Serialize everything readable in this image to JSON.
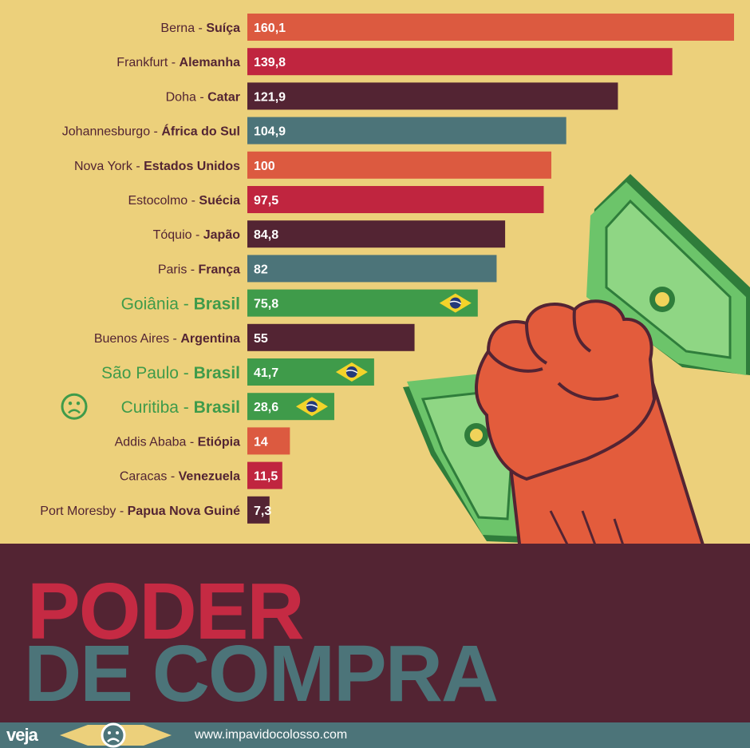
{
  "title": {
    "line1": "PODER",
    "line2": "DE COMPRA"
  },
  "footer": {
    "brand": "veja",
    "site": "www.impavidocolosso.com"
  },
  "colors": {
    "background": "#ecd07b",
    "orange": "#dc5a40",
    "red": "#c0253f",
    "maroon": "#532433",
    "teal": "#4c7479",
    "green": "#3f9b4a",
    "brasil_label": "#3f9b4a"
  },
  "chart_data": {
    "type": "bar",
    "orientation": "horizontal",
    "xlim": [
      0,
      160.1
    ],
    "categories": [
      {
        "city": "Berna",
        "country": "Suíça"
      },
      {
        "city": "Frankfurt",
        "country": "Alemanha"
      },
      {
        "city": "Doha",
        "country": "Catar"
      },
      {
        "city": "Johannesburgo",
        "country": "África do Sul"
      },
      {
        "city": "Nova York",
        "country": "Estados Unidos"
      },
      {
        "city": "Estocolmo",
        "country": "Suécia"
      },
      {
        "city": "Tóquio",
        "country": "Japão"
      },
      {
        "city": "Paris",
        "country": "França"
      },
      {
        "city": "Goiânia",
        "country": "Brasil"
      },
      {
        "city": "Buenos Aires",
        "country": "Argentina"
      },
      {
        "city": "São Paulo",
        "country": "Brasil"
      },
      {
        "city": "Curitiba",
        "country": "Brasil"
      },
      {
        "city": "Addis Ababa",
        "country": "Etiópia"
      },
      {
        "city": "Caracas",
        "country": "Venezuela"
      },
      {
        "city": "Port Moresby",
        "country": "Papua Nova Guiné"
      }
    ],
    "values": [
      160.1,
      139.8,
      121.9,
      104.9,
      100,
      97.5,
      84.8,
      82,
      75.8,
      55,
      41.7,
      28.6,
      14,
      11.5,
      7.3
    ],
    "value_labels": [
      "160,1",
      "139,8",
      "121,9",
      "104,9",
      "100",
      "97,5",
      "84,8",
      "82",
      "75,8",
      "55",
      "41,7",
      "28,6",
      "14",
      "11,5",
      "7,3"
    ],
    "bar_colors": [
      "orange",
      "red",
      "maroon",
      "teal",
      "orange",
      "red",
      "maroon",
      "teal",
      "green",
      "maroon",
      "green",
      "green",
      "orange",
      "red",
      "maroon"
    ],
    "highlight": [
      false,
      false,
      false,
      false,
      false,
      false,
      false,
      false,
      true,
      false,
      true,
      true,
      false,
      false,
      false
    ],
    "flag": [
      false,
      false,
      false,
      false,
      false,
      false,
      false,
      false,
      true,
      false,
      true,
      true,
      false,
      false,
      false
    ],
    "sad_face": [
      false,
      false,
      false,
      false,
      false,
      false,
      false,
      false,
      false,
      false,
      false,
      true,
      false,
      false,
      false
    ]
  }
}
